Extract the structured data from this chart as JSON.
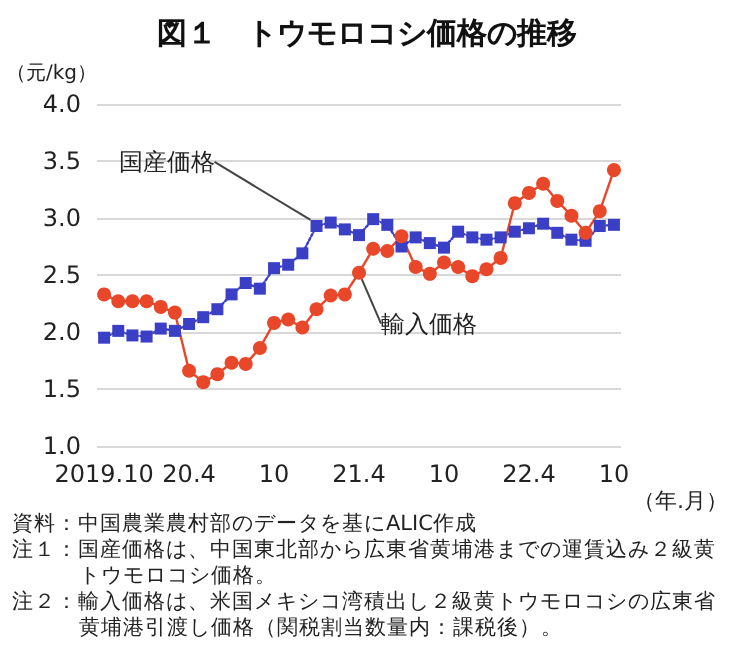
{
  "chart_data": {
    "type": "line",
    "title": "図１　トウモロコシ価格の推移",
    "ylabel": "（元/kg）",
    "xlabel": "（年.月）",
    "categories": [
      "2019.10",
      null,
      null,
      null,
      null,
      null,
      "20.4",
      null,
      null,
      null,
      null,
      null,
      "10",
      null,
      null,
      null,
      null,
      null,
      "21.4",
      null,
      null,
      null,
      null,
      null,
      "10",
      null,
      null,
      null,
      null,
      null,
      "22.4",
      null,
      null,
      null,
      null,
      null,
      "10"
    ],
    "series": [
      {
        "name": "国産価格",
        "color": "#3b3fc6",
        "marker": "square",
        "line_style": "dotted",
        "values": [
          1.95,
          2.01,
          1.97,
          1.96,
          2.03,
          2.01,
          2.07,
          2.13,
          2.2,
          2.33,
          2.43,
          2.38,
          2.56,
          2.59,
          2.69,
          2.93,
          2.96,
          2.9,
          2.85,
          2.99,
          2.94,
          2.75,
          2.83,
          2.78,
          2.74,
          2.88,
          2.83,
          2.81,
          2.83,
          2.88,
          2.91,
          2.95,
          2.87,
          2.81,
          2.8,
          2.93,
          2.94
        ]
      },
      {
        "name": "輸入価格",
        "color": "#e8472a",
        "marker": "circle",
        "line_style": "solid",
        "values": [
          2.33,
          2.27,
          2.27,
          2.27,
          2.22,
          2.17,
          1.66,
          1.56,
          1.63,
          1.73,
          1.72,
          1.86,
          2.08,
          2.11,
          2.04,
          2.2,
          2.32,
          2.33,
          2.52,
          2.73,
          2.71,
          2.84,
          2.57,
          2.51,
          2.61,
          2.57,
          2.49,
          2.55,
          2.65,
          3.13,
          3.22,
          3.3,
          3.15,
          3.02,
          2.87,
          3.06,
          3.42
        ]
      }
    ],
    "ylim": [
      1,
      4
    ],
    "yticks": [
      {
        "value": 1,
        "label": "1.0"
      },
      {
        "value": 1.5,
        "label": "1.5"
      },
      {
        "value": 2,
        "label": "2.0"
      },
      {
        "value": 2.5,
        "label": "2.5"
      },
      {
        "value": 3,
        "label": "3.0"
      },
      {
        "value": 3.5,
        "label": "3.5"
      },
      {
        "value": 4,
        "label": "4.0"
      }
    ],
    "grid": "y",
    "legend": false,
    "annotations": [
      "資料：中国農業農村部のデータを基にALIC作成",
      "注１：国産価格は、中国東北部から広東省黄埔港までの運賃込み２級黄トウモロコシ価格。",
      "注２：輸入価格は、米国メキシコ湾積出し２級黄トウモロコシの広東省黄埔港引渡し価格（関税割当数量内：課税後）。"
    ]
  }
}
